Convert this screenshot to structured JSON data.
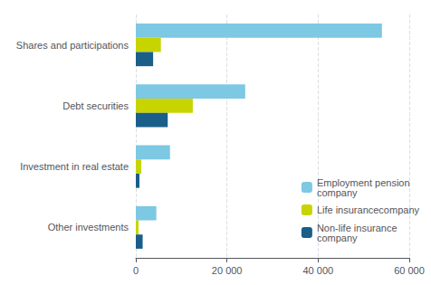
{
  "chart_data": {
    "type": "bar",
    "orientation": "horizontal",
    "categories": [
      "Shares and participations",
      "Debt securities",
      "Investment in real estate",
      "Other investments"
    ],
    "series": [
      {
        "name": "Employment pension\ncompany",
        "color": "#7DC8E3",
        "values": [
          54000,
          24000,
          7500,
          4500
        ]
      },
      {
        "name": "Life insurancecompany",
        "color": "#C8D400",
        "values": [
          5500,
          12500,
          1200,
          600
        ]
      },
      {
        "name": "Non-life insurance\ncompany",
        "color": "#1A5E8A",
        "values": [
          3800,
          7000,
          800,
          1500
        ]
      }
    ],
    "xlim": [
      0,
      60000
    ],
    "xticks": [
      0,
      {
        "value": 20000,
        "label": "20 000"
      },
      {
        "value": 40000,
        "label": "40 000"
      },
      {
        "value": 60000,
        "label": "60 000"
      }
    ],
    "grid": true,
    "legend": "right"
  }
}
